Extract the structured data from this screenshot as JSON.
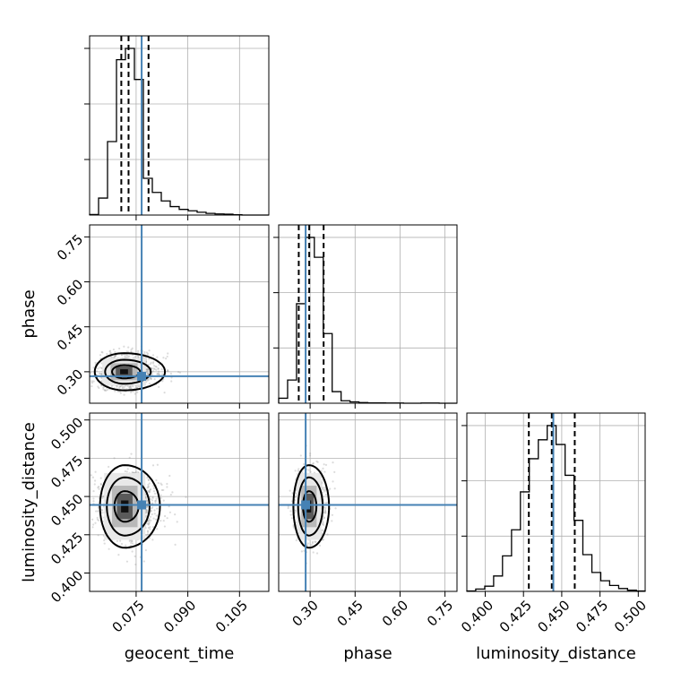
{
  "chart_data": {
    "type": "corner",
    "parameters": [
      "geocent_time",
      "phase",
      "luminosity_distance"
    ],
    "axis_labels": {
      "geocent_time": "geocent_time",
      "phase": "phase",
      "luminosity_distance": "luminosity_distance"
    },
    "ranges": {
      "geocent_time": [
        0.0615,
        0.1135
      ],
      "phase": [
        0.195,
        0.79
      ],
      "luminosity_distance": [
        0.388,
        0.5045
      ]
    },
    "ticks": {
      "geocent_time": {
        "values": [
          0.075,
          0.09,
          0.105
        ],
        "labels": [
          "0.075",
          "0.090",
          "0.105"
        ]
      },
      "phase": {
        "values": [
          0.3,
          0.45,
          0.6,
          0.75
        ],
        "labels": [
          "0.30",
          "0.45",
          "0.60",
          "0.75"
        ]
      },
      "luminosity_distance": {
        "values": [
          0.4,
          0.425,
          0.45,
          0.475,
          0.5
        ],
        "labels": [
          "0.400",
          "0.425",
          "0.450",
          "0.475",
          "0.500"
        ]
      }
    },
    "truths": {
      "geocent_time": 0.0766,
      "phase": 0.285,
      "luminosity_distance": 0.4445
    },
    "quantiles": {
      "geocent_time": [
        0.0707,
        0.0728,
        0.0786
      ],
      "phase": [
        0.262,
        0.297,
        0.345
      ],
      "luminosity_distance": [
        0.4285,
        0.4435,
        0.4585
      ]
    },
    "histograms": {
      "geocent_time": {
        "edges": [
          0.0615,
          0.0641,
          0.0667,
          0.0693,
          0.0719,
          0.0745,
          0.0771,
          0.0797,
          0.0823,
          0.0849,
          0.0875,
          0.0901,
          0.0927,
          0.0953,
          0.0979,
          0.1005,
          0.1031,
          0.1057,
          0.1083,
          0.1109,
          0.1135
        ],
        "counts": [
          2,
          60,
          260,
          550,
          590,
          480,
          130,
          80,
          50,
          30,
          20,
          15,
          10,
          6,
          4,
          3,
          1,
          0,
          0,
          0
        ]
      },
      "phase": {
        "edges": [
          0.195,
          0.2248,
          0.2545,
          0.2843,
          0.314,
          0.3438,
          0.3735,
          0.4033,
          0.433,
          0.4628,
          0.4925,
          0.5223,
          0.552,
          0.5818,
          0.6115,
          0.6413,
          0.67,
          0.7008,
          0.7305,
          0.7603,
          0.79
        ],
        "counts": [
          30,
          140,
          600,
          1000,
          880,
          420,
          70,
          15,
          8,
          4,
          2,
          2,
          1,
          1,
          0,
          0,
          1,
          1,
          0,
          0
        ]
      },
      "luminosity_distance": {
        "edges": [
          0.388,
          0.3938,
          0.3997,
          0.4055,
          0.4113,
          0.4172,
          0.423,
          0.4288,
          0.4347,
          0.4405,
          0.4463,
          0.4522,
          0.458,
          0.4638,
          0.4697,
          0.4755,
          0.4813,
          0.4872,
          0.493,
          0.4988,
          0.5045
        ],
        "counts": [
          2,
          10,
          22,
          65,
          150,
          260,
          420,
          560,
          640,
          700,
          620,
          490,
          300,
          155,
          80,
          45,
          25,
          12,
          5,
          2
        ]
      }
    },
    "samples_2d": {
      "note": "scatter of posterior samples",
      "density_centers": {
        "geocent_time|phase": [
          0.0715,
          0.3
        ],
        "geocent_time|luminosity_distance": [
          0.0717,
          0.4435
        ],
        "phase|luminosity_distance": [
          0.296,
          0.4435
        ]
      }
    }
  }
}
